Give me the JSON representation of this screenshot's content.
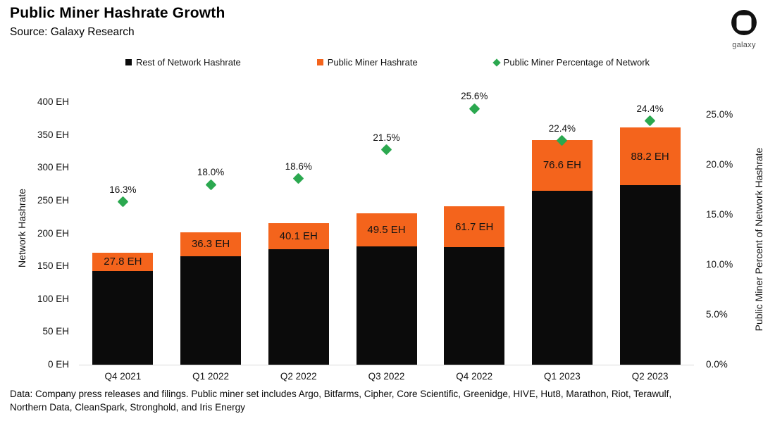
{
  "brand": {
    "logo_text": "galaxy"
  },
  "chart_data": {
    "type": "bar",
    "stacked": true,
    "title": "Public Miner Hashrate Growth",
    "subtitle": "Source: Galaxy Research",
    "categories": [
      "Q4 2021",
      "Q1 2022",
      "Q2 2022",
      "Q3 2022",
      "Q4 2022",
      "Q1 2023",
      "Q2 2023"
    ],
    "series": [
      {
        "name": "Rest of Network Hashrate",
        "role": "bar",
        "color": "#0b0b0b",
        "values": [
          142.8,
          165.4,
          175.5,
          180.7,
          179.3,
          265.4,
          273.3
        ]
      },
      {
        "name": "Public Miner Hashrate",
        "role": "bar",
        "color": "#f4641c",
        "values": [
          27.8,
          36.3,
          40.1,
          49.5,
          61.7,
          76.6,
          88.2
        ],
        "data_labels": [
          "27.8 EH",
          "36.3 EH",
          "40.1 EH",
          "49.5 EH",
          "61.7 EH",
          "76.6 EH",
          "88.2 EH"
        ]
      },
      {
        "name": "Public Miner Percentage of Network",
        "role": "point-diamond",
        "axis": "right",
        "color": "#2ba84f",
        "values": [
          16.3,
          18.0,
          18.6,
          21.5,
          25.6,
          22.4,
          24.4
        ],
        "data_labels": [
          "16.3%",
          "18.0%",
          "18.6%",
          "21.5%",
          "25.6%",
          "22.4%",
          "24.4%"
        ]
      }
    ],
    "left_axis": {
      "title": "Network Hashrate",
      "min": 0,
      "max": 400,
      "tick_step": 50,
      "ticks": [
        "0 EH",
        "50 EH",
        "100 EH",
        "150 EH",
        "200 EH",
        "250 EH",
        "300 EH",
        "350 EH",
        "400 EH"
      ]
    },
    "right_axis": {
      "title": "Public Miner Percent of Network Hashrate",
      "min": 0,
      "max": 25,
      "tick_step": 5,
      "ticks": [
        "0.0%",
        "5.0%",
        "10.0%",
        "15.0%",
        "20.0%",
        "25.0%"
      ]
    },
    "legend_position": "top",
    "grid": false,
    "footnote": "Data: Company press releases and filings. Public miner set includes Argo, Bitfarms, Cipher, Core Scientific, Greenidge, HIVE, Hut8, Marathon, Riot, Terawulf, Northern Data, CleanSpark, Stronghold, and Iris Energy"
  }
}
